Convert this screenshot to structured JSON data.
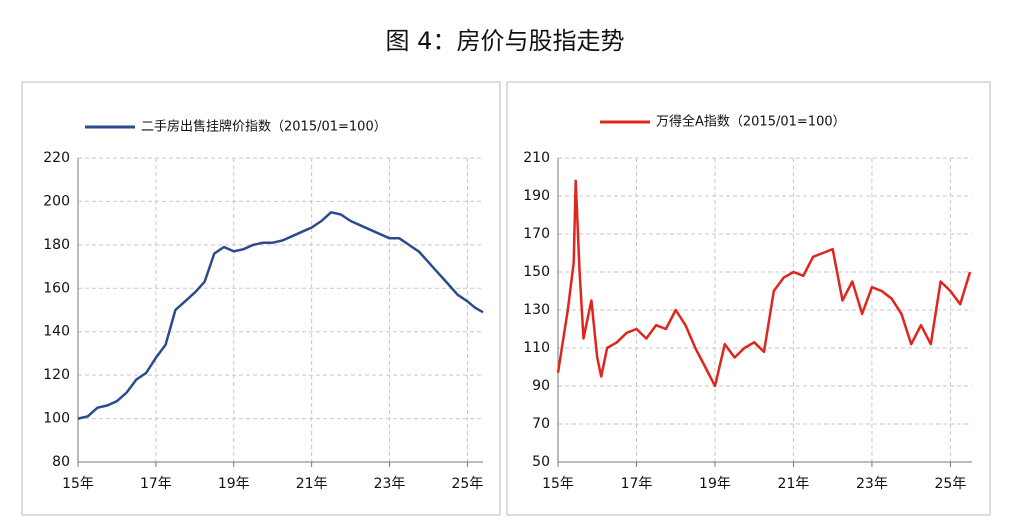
{
  "title": "图 4：房价与股指走势",
  "chart_data": [
    {
      "type": "line",
      "x": [
        2015.0,
        2015.25,
        2015.5,
        2015.75,
        2016.0,
        2016.25,
        2016.5,
        2016.75,
        2017.0,
        2017.25,
        2017.5,
        2017.75,
        2018.0,
        2018.25,
        2018.5,
        2018.75,
        2019.0,
        2019.25,
        2019.5,
        2019.75,
        2020.0,
        2020.25,
        2020.5,
        2020.75,
        2021.0,
        2021.25,
        2021.5,
        2021.75,
        2022.0,
        2022.25,
        2022.5,
        2022.75,
        2023.0,
        2023.25,
        2023.5,
        2023.75,
        2024.0,
        2024.25,
        2024.5,
        2024.75,
        2025.0,
        2025.2,
        2025.4
      ],
      "series": [
        {
          "name": "二手房出售挂牌价指数（2015/01=100）",
          "color": "#2e4a8e",
          "values": [
            100,
            101,
            105,
            106,
            108,
            112,
            118,
            121,
            128,
            134,
            150,
            154,
            158,
            163,
            176,
            179,
            177,
            178,
            180,
            181,
            181,
            182,
            184,
            186,
            188,
            191,
            195,
            194,
            191,
            189,
            187,
            185,
            183,
            183,
            180,
            177,
            172,
            167,
            162,
            157,
            154,
            151,
            149
          ]
        }
      ],
      "xlim": [
        2015,
        2025.4
      ],
      "xticks": [
        {
          "value": 2015,
          "label": "15年"
        },
        {
          "value": 2017,
          "label": "17年"
        },
        {
          "value": 2019,
          "label": "19年"
        },
        {
          "value": 2021,
          "label": "21年"
        },
        {
          "value": 2023,
          "label": "23年"
        },
        {
          "value": 2025,
          "label": "25年"
        }
      ],
      "ylim": [
        80,
        220
      ],
      "yticks": [
        80,
        100,
        120,
        140,
        160,
        180,
        200,
        220
      ],
      "grid": true
    },
    {
      "type": "line",
      "x": [
        2015.0,
        2015.25,
        2015.4,
        2015.45,
        2015.55,
        2015.65,
        2015.75,
        2015.85,
        2016.0,
        2016.1,
        2016.25,
        2016.5,
        2016.75,
        2017.0,
        2017.25,
        2017.5,
        2017.75,
        2018.0,
        2018.25,
        2018.5,
        2018.75,
        2019.0,
        2019.25,
        2019.5,
        2019.75,
        2020.0,
        2020.25,
        2020.5,
        2020.75,
        2021.0,
        2021.25,
        2021.5,
        2021.75,
        2022.0,
        2022.25,
        2022.5,
        2022.75,
        2023.0,
        2023.25,
        2023.5,
        2023.75,
        2024.0,
        2024.25,
        2024.5,
        2024.75,
        2025.0,
        2025.25,
        2025.5
      ],
      "series": [
        {
          "name": "万得全A指数（2015/01=100）",
          "color": "#e0261c",
          "values": [
            97,
            130,
            155,
            198,
            150,
            115,
            125,
            135,
            105,
            95,
            110,
            113,
            118,
            120,
            115,
            122,
            120,
            130,
            122,
            110,
            100,
            90,
            112,
            105,
            110,
            113,
            108,
            140,
            147,
            150,
            148,
            158,
            160,
            162,
            135,
            145,
            128,
            142,
            140,
            136,
            128,
            112,
            122,
            112,
            145,
            140,
            133,
            150
          ]
        }
      ],
      "xlim": [
        2015,
        2025.55
      ],
      "xticks": [
        {
          "value": 2015,
          "label": "15年"
        },
        {
          "value": 2017,
          "label": "17年"
        },
        {
          "value": 2019,
          "label": "19年"
        },
        {
          "value": 2021,
          "label": "21年"
        },
        {
          "value": 2023,
          "label": "23年"
        },
        {
          "value": 2025,
          "label": "25年"
        }
      ],
      "ylim": [
        50,
        210
      ],
      "yticks": [
        50,
        70,
        90,
        110,
        130,
        150,
        170,
        190,
        210
      ],
      "grid": true
    }
  ]
}
